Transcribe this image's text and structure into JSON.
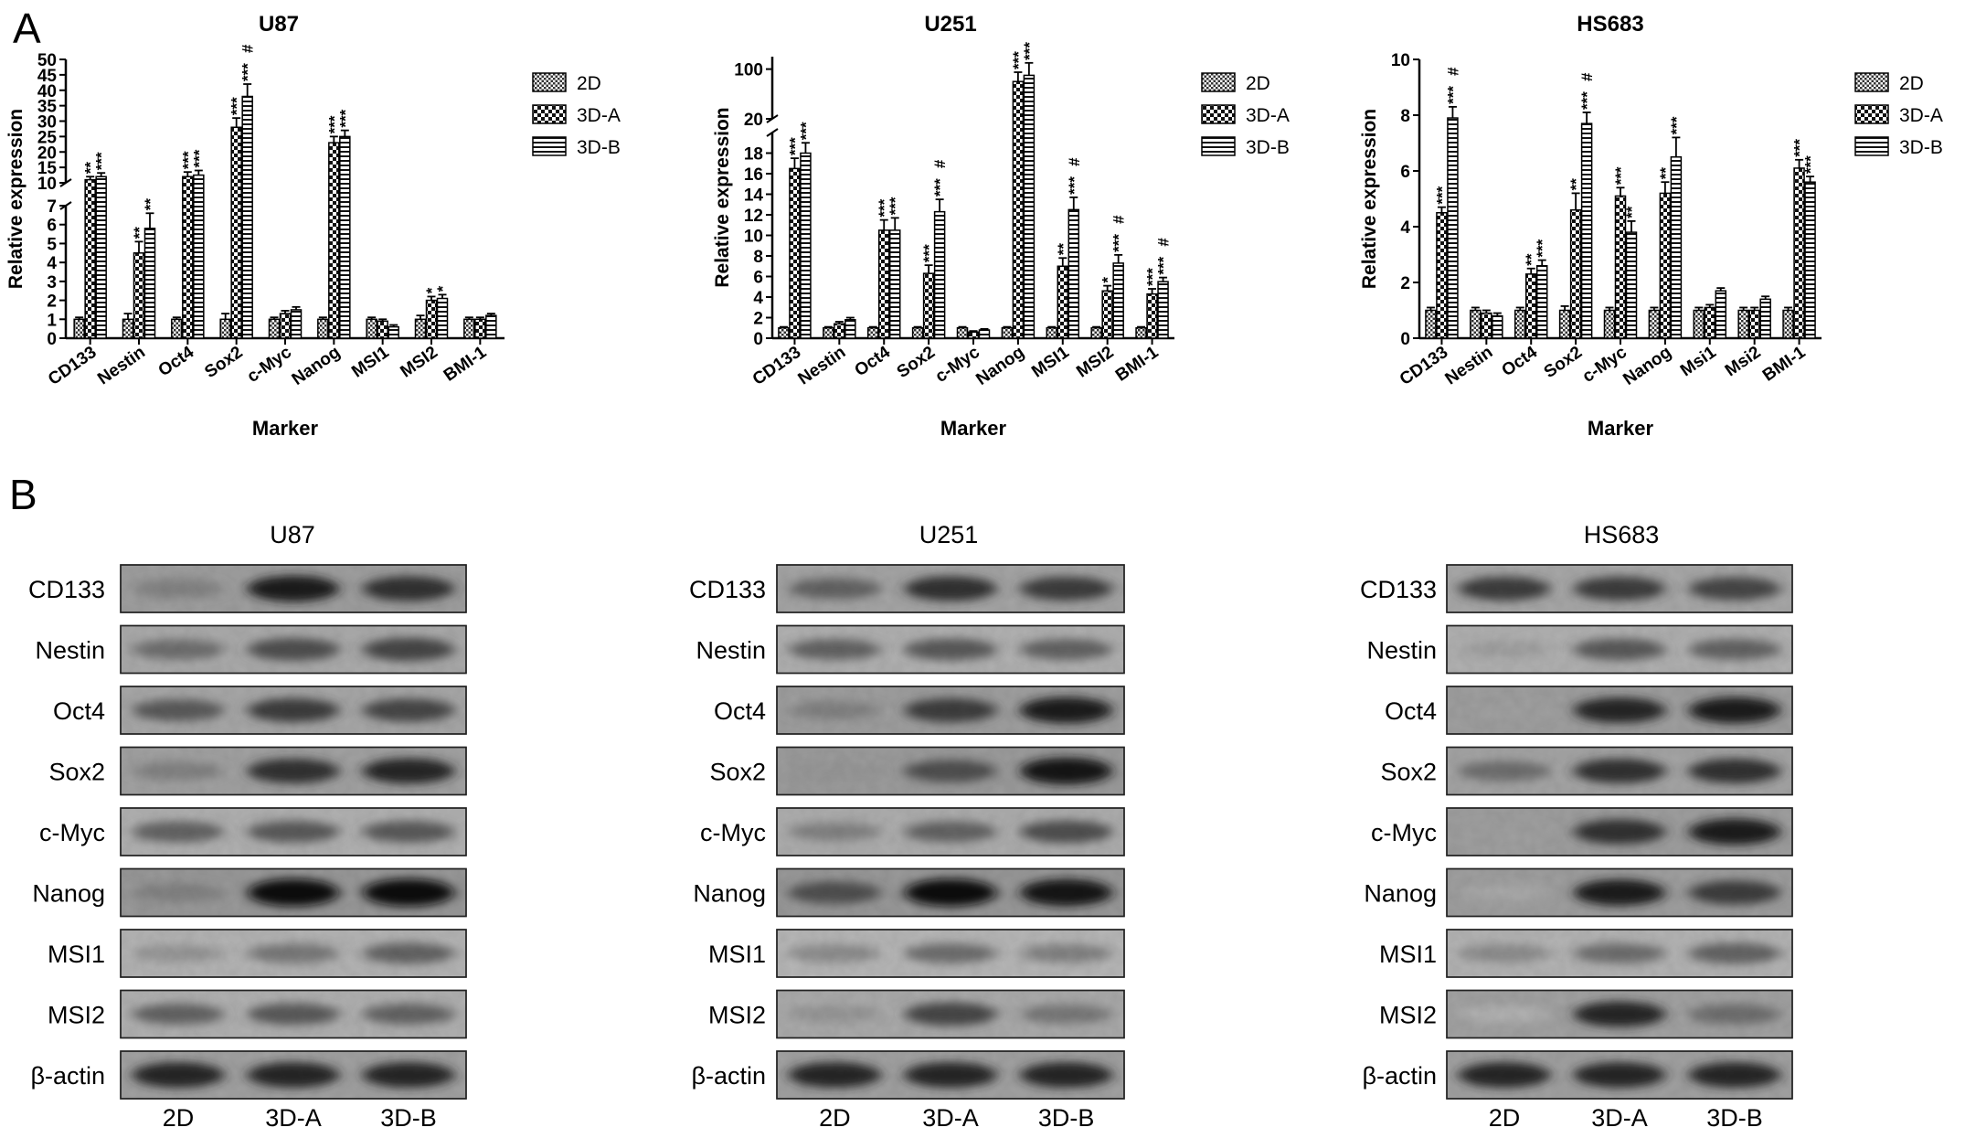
{
  "panel_a_label": "A",
  "panel_b_label": "B",
  "legend_series": [
    "2D",
    "3D-A",
    "3D-B"
  ],
  "chart_data": [
    {
      "type": "bar",
      "title": "U87",
      "xlabel": "Marker",
      "ylabel": "Relative expression",
      "categories": [
        "CD133",
        "Nestin",
        "Oct4",
        "Sox2",
        "c-Myc",
        "Nanog",
        "MSI1",
        "MSI2",
        "BMI-1"
      ],
      "series": [
        {
          "name": "2D",
          "values": [
            1.0,
            1.0,
            1.0,
            1.0,
            1.0,
            1.0,
            1.0,
            1.0,
            1.0
          ]
        },
        {
          "name": "3D-A",
          "values": [
            11,
            4.5,
            12,
            28,
            1.3,
            23,
            0.9,
            2.0,
            1.0
          ]
        },
        {
          "name": "3D-B",
          "values": [
            12,
            5.8,
            12.5,
            38,
            1.5,
            25,
            0.6,
            2.1,
            1.2
          ]
        }
      ],
      "errors": [
        [
          0.1,
          0.3,
          0.1,
          0.3,
          0.1,
          0.1,
          0.1,
          0.2,
          0.1
        ],
        [
          1.0,
          0.6,
          1.5,
          3.0,
          0.15,
          2.0,
          0.1,
          0.2,
          0.1
        ],
        [
          1.2,
          0.8,
          1.5,
          4.0,
          0.15,
          2.0,
          0.1,
          0.2,
          0.1
        ]
      ],
      "significance": [
        [
          "",
          "",
          "",
          "",
          "",
          "",
          "",
          "",
          ""
        ],
        [
          "**",
          "**",
          "***",
          "***",
          "",
          "***",
          "",
          "*",
          ""
        ],
        [
          "***",
          "**",
          "***",
          "***\n#",
          "",
          "***",
          "",
          "*",
          ""
        ]
      ],
      "axis": {
        "lower_range": [
          0,
          7
        ],
        "lower_ticks": [
          "0",
          "1",
          "2",
          "3",
          "4",
          "5",
          "6",
          "7"
        ],
        "upper_range": [
          10,
          50
        ],
        "upper_ticks": [
          "10",
          "15",
          "20",
          "25",
          "30",
          "35",
          "40",
          "45",
          "50"
        ]
      }
    },
    {
      "type": "bar",
      "title": "U251",
      "xlabel": "Marker",
      "ylabel": "Relative expression",
      "categories": [
        "CD133",
        "Nestin",
        "Oct4",
        "Sox2",
        "c-Myc",
        "Nanog",
        "MSI1",
        "MSI2",
        "BMI-1"
      ],
      "series": [
        {
          "name": "2D",
          "values": [
            1.0,
            1.0,
            1.0,
            1.0,
            1.0,
            1.0,
            1.0,
            1.0,
            1.0
          ]
        },
        {
          "name": "3D-A",
          "values": [
            16.5,
            1.4,
            10.5,
            6.3,
            0.6,
            80,
            7.0,
            4.6,
            4.3
          ]
        },
        {
          "name": "3D-B",
          "values": [
            18,
            1.8,
            10.5,
            12.3,
            0.8,
            90,
            12.5,
            7.3,
            5.5
          ]
        }
      ],
      "errors": [
        [
          0.1,
          0.1,
          0.1,
          0.1,
          0.1,
          0.1,
          0.1,
          0.1,
          0.1
        ],
        [
          1.0,
          0.2,
          1.0,
          0.8,
          0.1,
          15,
          0.8,
          0.5,
          0.5
        ],
        [
          1.0,
          0.2,
          1.2,
          1.2,
          0.1,
          20,
          1.2,
          0.8,
          0.4
        ]
      ],
      "significance": [
        [
          "",
          "",
          "",
          "",
          "",
          "",
          "",
          "",
          ""
        ],
        [
          "***",
          "",
          "***",
          "***",
          "",
          "***",
          "**",
          "*",
          "***"
        ],
        [
          "***",
          "",
          "***",
          "***\n#",
          "",
          "***",
          "***\n#",
          "***\n#",
          "***\n#"
        ]
      ],
      "axis": {
        "lower_range": [
          0,
          20
        ],
        "lower_ticks": [
          "0",
          "2",
          "4",
          "6",
          "8",
          "10",
          "12",
          "14",
          "16",
          "18",
          "20"
        ],
        "upper_range": [
          20,
          120
        ],
        "upper_ticks": [
          "100"
        ]
      }
    },
    {
      "type": "bar",
      "title": "HS683",
      "xlabel": "Marker",
      "ylabel": "Relative expression",
      "categories": [
        "CD133",
        "Nestin",
        "Oct4",
        "Sox2",
        "c-Myc",
        "Nanog",
        "Msi1",
        "Msi2",
        "BMI-1"
      ],
      "series": [
        {
          "name": "2D",
          "values": [
            1.0,
            1.0,
            1.0,
            1.0,
            1.0,
            1.0,
            1.0,
            1.0,
            1.0
          ]
        },
        {
          "name": "3D-A",
          "values": [
            4.5,
            0.9,
            2.3,
            4.6,
            5.1,
            5.2,
            1.1,
            1.0,
            6.1
          ]
        },
        {
          "name": "3D-B",
          "values": [
            7.9,
            0.8,
            2.6,
            7.7,
            3.8,
            6.5,
            1.7,
            1.4,
            5.6
          ]
        }
      ],
      "errors": [
        [
          0.1,
          0.1,
          0.1,
          0.15,
          0.1,
          0.1,
          0.1,
          0.1,
          0.1
        ],
        [
          0.2,
          0.1,
          0.2,
          0.6,
          0.3,
          0.4,
          0.1,
          0.1,
          0.3
        ],
        [
          0.4,
          0.1,
          0.2,
          0.4,
          0.4,
          0.7,
          0.1,
          0.1,
          0.2
        ]
      ],
      "significance": [
        [
          "",
          "",
          "",
          "",
          "",
          "",
          "",
          "",
          ""
        ],
        [
          "***",
          "",
          "**",
          "**",
          "***",
          "**",
          "",
          "",
          "***"
        ],
        [
          "***\n#",
          "",
          "***",
          "***\n#",
          "**",
          "***",
          "",
          "",
          "***"
        ]
      ],
      "axis": {
        "lower_range": [
          0,
          10
        ],
        "lower_ticks": [
          "0",
          "2",
          "4",
          "6",
          "8",
          "10"
        ]
      }
    }
  ],
  "blots": [
    {
      "title": "U87",
      "row_labels": [
        "CD133",
        "Nestin",
        "Oct4",
        "Sox2",
        "c-Myc",
        "Nanog",
        "MSI1",
        "MSI2",
        "β-actin"
      ],
      "lane_labels": [
        "2D",
        "3D-A",
        "3D-B"
      ]
    },
    {
      "title": "U251",
      "row_labels": [
        "CD133",
        "Nestin",
        "Oct4",
        "Sox2",
        "c-Myc",
        "Nanog",
        "MSI1",
        "MSI2",
        "β-actin"
      ],
      "lane_labels": [
        "2D",
        "3D-A",
        "3D-B"
      ]
    },
    {
      "title": "HS683",
      "row_labels": [
        "CD133",
        "Nestin",
        "Oct4",
        "Sox2",
        "c-Myc",
        "Nanog",
        "MSI1",
        "MSI2",
        "β-actin"
      ],
      "lane_labels": [
        "2D",
        "3D-A",
        "3D-B"
      ]
    }
  ],
  "blot_intensities": [
    [
      [
        0.35,
        0.85,
        0.75
      ],
      [
        0.45,
        0.6,
        0.65
      ],
      [
        0.55,
        0.7,
        0.65
      ],
      [
        0.35,
        0.75,
        0.8
      ],
      [
        0.5,
        0.55,
        0.55
      ],
      [
        0.35,
        0.95,
        0.95
      ],
      [
        0.25,
        0.4,
        0.5
      ],
      [
        0.5,
        0.55,
        0.5
      ],
      [
        0.8,
        0.8,
        0.8
      ]
    ],
    [
      [
        0.5,
        0.75,
        0.7
      ],
      [
        0.5,
        0.55,
        0.5
      ],
      [
        0.35,
        0.7,
        0.85
      ],
      [
        0.25,
        0.6,
        0.9
      ],
      [
        0.35,
        0.5,
        0.6
      ],
      [
        0.6,
        0.95,
        0.9
      ],
      [
        0.3,
        0.45,
        0.35
      ],
      [
        0.25,
        0.65,
        0.4
      ],
      [
        0.8,
        0.8,
        0.8
      ]
    ],
    [
      [
        0.7,
        0.7,
        0.65
      ],
      [
        0.2,
        0.55,
        0.5
      ],
      [
        0.2,
        0.8,
        0.85
      ],
      [
        0.45,
        0.75,
        0.75
      ],
      [
        0.2,
        0.75,
        0.85
      ],
      [
        0.15,
        0.85,
        0.7
      ],
      [
        0.3,
        0.45,
        0.5
      ],
      [
        0.1,
        0.8,
        0.45
      ],
      [
        0.8,
        0.8,
        0.8
      ]
    ]
  ]
}
